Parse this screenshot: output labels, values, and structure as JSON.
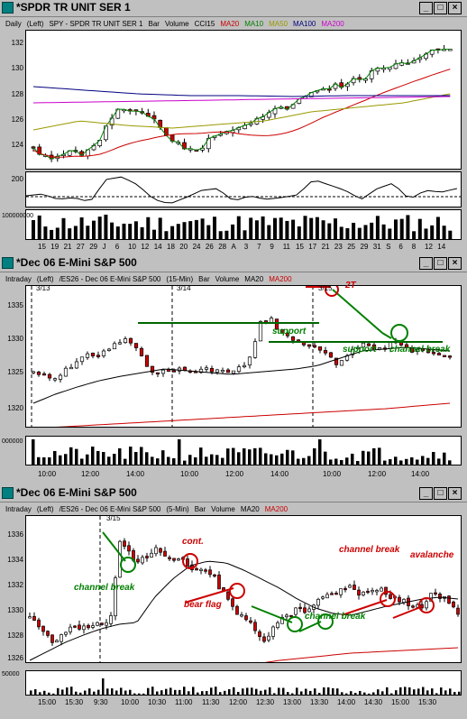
{
  "windows": [
    {
      "title": "*SPDR TR UNIT SER 1",
      "info": [
        "Daily",
        "(Left)",
        "SPY - SPDR TR UNIT SER 1",
        "Bar",
        "Volume",
        "CCI15"
      ],
      "ma": [
        {
          "label": "MA20",
          "color": "#cc0000"
        },
        {
          "label": "MA10",
          "color": "#008000"
        },
        {
          "label": "MA50",
          "color": "#999900"
        },
        {
          "label": "MA100",
          "color": "#000080"
        },
        {
          "label": "MA200",
          "color": "#cc00cc"
        }
      ],
      "yticks": [
        "132",
        "130",
        "128",
        "126",
        "124"
      ],
      "cci_label": "200",
      "vol_label": "100000000",
      "xticks": [
        "15",
        "19",
        "21",
        "27",
        "29",
        "J",
        "6",
        "10",
        "12",
        "14",
        "18",
        "20",
        "24",
        "26",
        "28",
        "A",
        "3",
        "7",
        "9",
        "11",
        "15",
        "17",
        "21",
        "23",
        "25",
        "29",
        "31",
        "S",
        "6",
        "8",
        "12",
        "14"
      ]
    },
    {
      "title": "*Dec 06  E-Mini S&P 500",
      "info": [
        "Intraday",
        "(Left)",
        "/ES26 - Dec 06  E-Mini S&P 500",
        "(15-Min)",
        "Bar",
        "Volume",
        "MA20"
      ],
      "ma": [
        {
          "label": "MA200",
          "color": "#cc0000"
        }
      ],
      "yticks": [
        "1335",
        "1330",
        "1325",
        "1320"
      ],
      "vol_label": "000000",
      "dates": [
        "3/13",
        "3/14",
        "3/15"
      ],
      "xticks": [
        "10:00",
        "12:00",
        "14:00",
        "10:00",
        "12:00",
        "14:00",
        "10:00",
        "12:00",
        "14:00"
      ],
      "annotations": {
        "support1": "support",
        "support2": "support",
        "channel": "channel break",
        "top": "2T"
      }
    },
    {
      "title": "*Dec 06  E-Mini S&P 500",
      "info": [
        "Intraday",
        "(Left)",
        "/ES26 - Dec 06  E-Mini S&P 500",
        "(5-Min)",
        "Bar",
        "Volume",
        "MA20"
      ],
      "ma": [
        {
          "label": "MA200",
          "color": "#cc0000"
        }
      ],
      "yticks": [
        "1336",
        "1334",
        "1332",
        "1330",
        "1328",
        "1326"
      ],
      "vol_label": "50000",
      "dates": [
        "3/15"
      ],
      "xticks": [
        "15:00",
        "15:30",
        "9:30",
        "10:00",
        "10:30",
        "11:00",
        "11:30",
        "12:00",
        "12:30",
        "13:00",
        "13:30",
        "14:00",
        "14:30",
        "15:00",
        "15:30"
      ],
      "annotations": {
        "channel1": "channel break",
        "cont": "cont.",
        "bear": "bear flag",
        "channel2": "channel break",
        "channel3": "channel break",
        "avalanche": "avalanche"
      }
    }
  ]
}
